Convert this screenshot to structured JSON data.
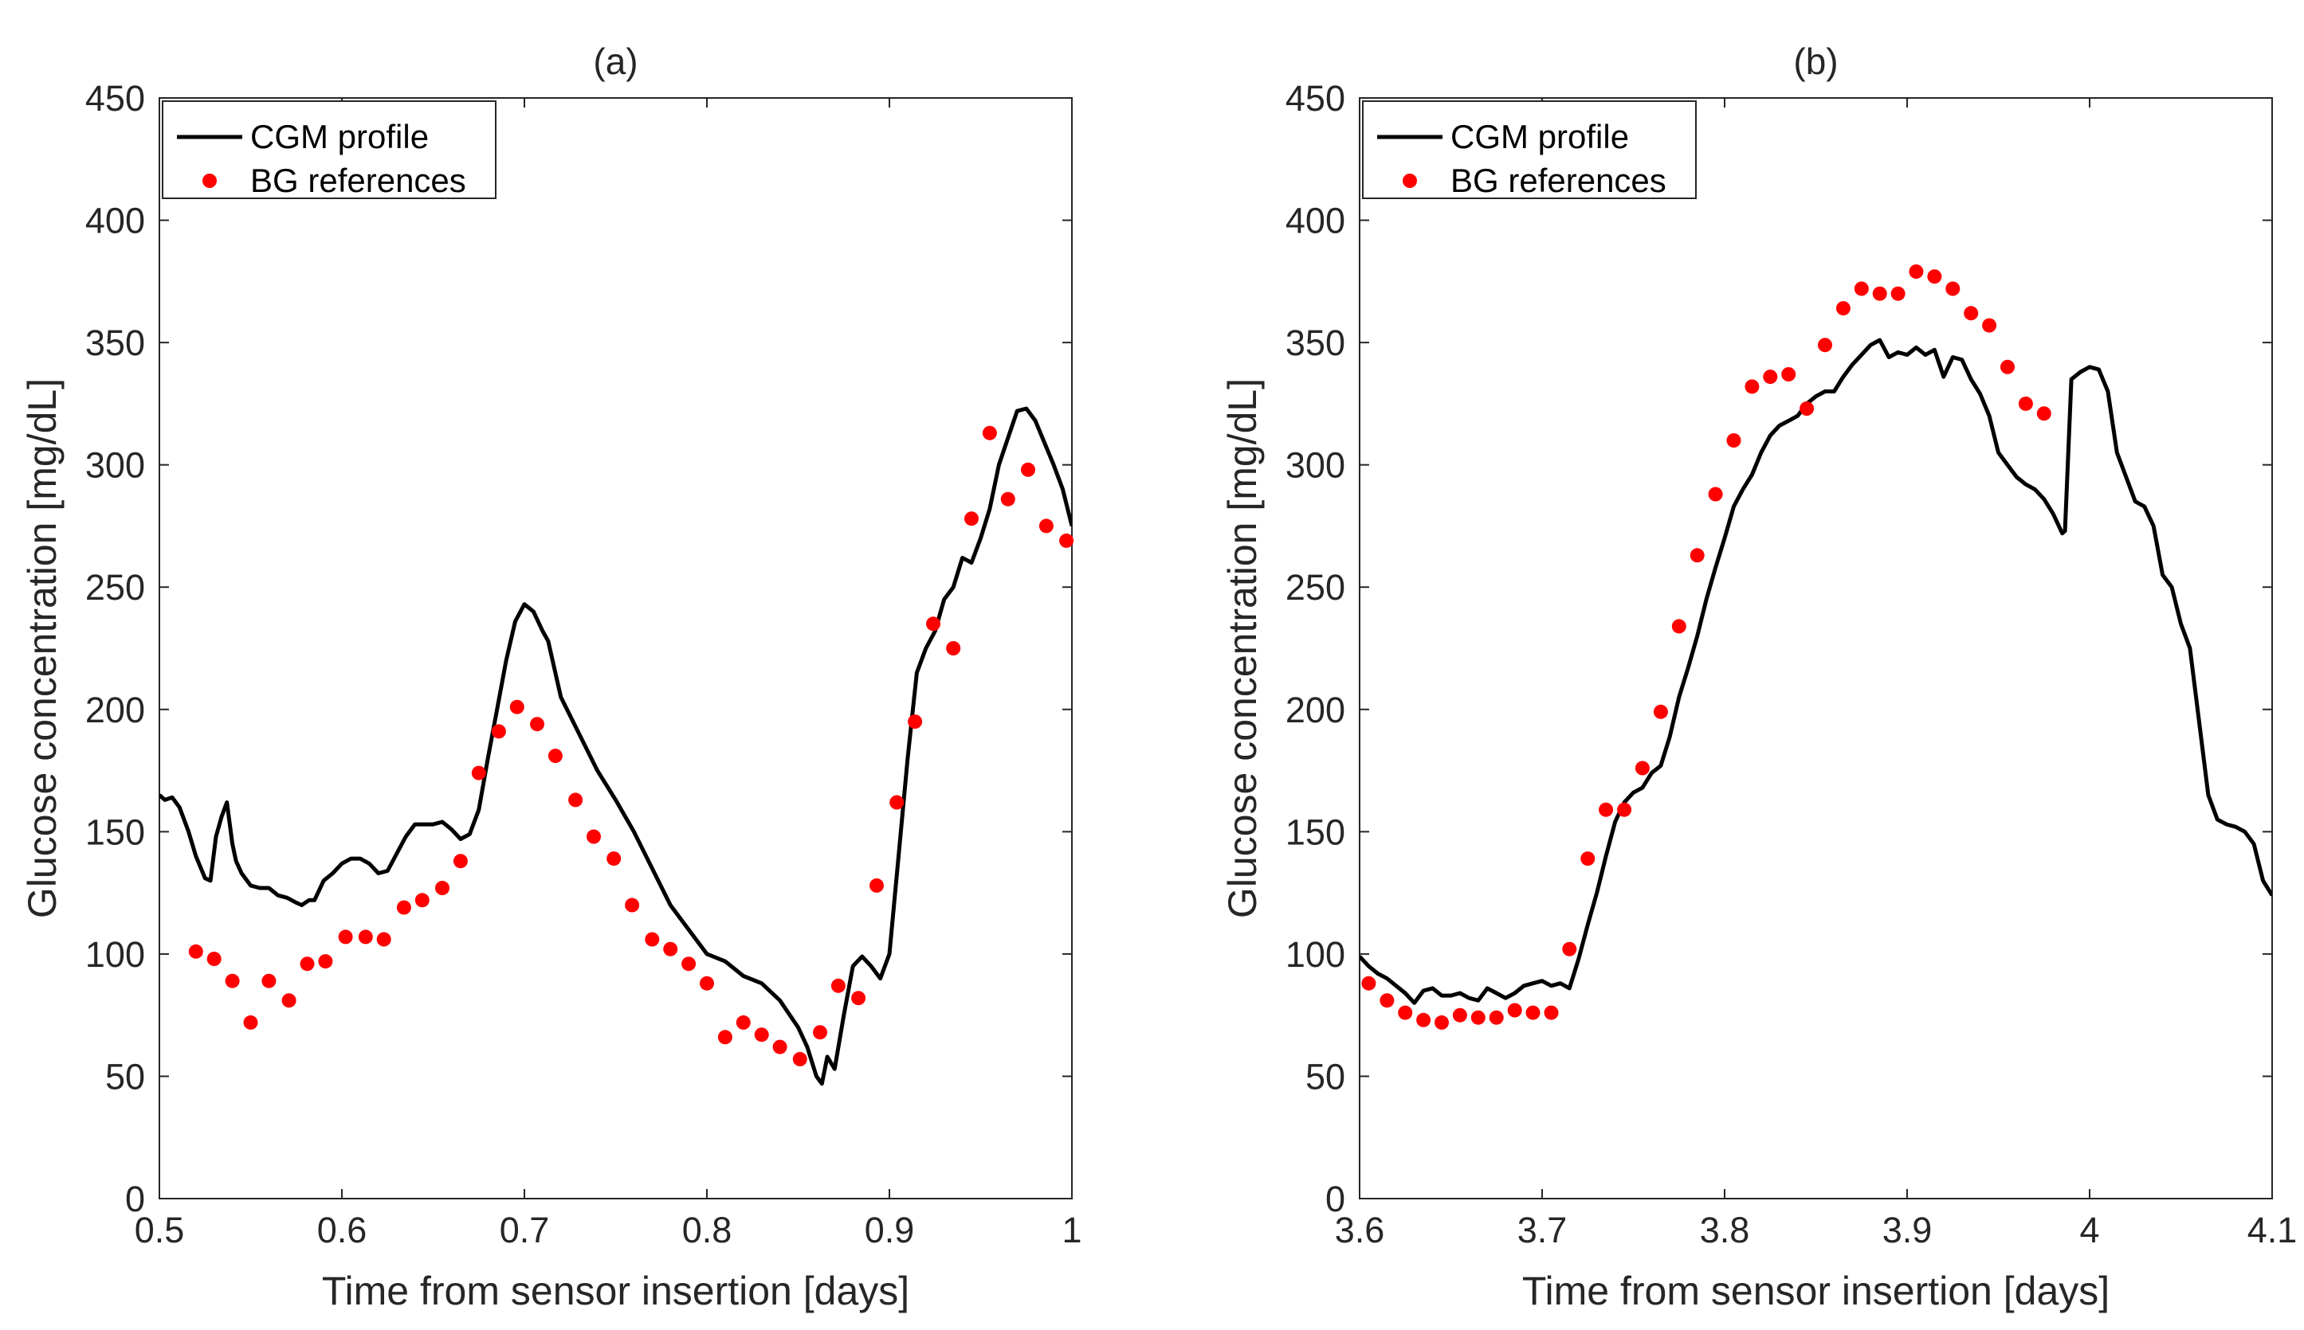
{
  "colors": {
    "line": "#000000",
    "dots": "#ff0000",
    "axis": "#262626",
    "background": "#ffffff"
  },
  "chart_data": [
    {
      "type": "line+scatter",
      "title": "(a)",
      "xlabel": "Time from sensor insertion [days]",
      "ylabel": "Glucose concentration [mg/dL]",
      "xlim": [
        0.5,
        1.0
      ],
      "ylim": [
        0,
        450
      ],
      "xticks": [
        0.5,
        0.6,
        0.7,
        0.8,
        0.9,
        1.0
      ],
      "xtick_labels": [
        "0.5",
        "0.6",
        "0.7",
        "0.8",
        "0.9",
        "1"
      ],
      "yticks": [
        0,
        50,
        100,
        150,
        200,
        250,
        300,
        350,
        400,
        450
      ],
      "ytick_labels": [
        "0",
        "50",
        "100",
        "150",
        "200",
        "250",
        "300",
        "350",
        "400",
        "450"
      ],
      "legend": {
        "position": "top-left",
        "entries": [
          "CGM profile",
          "BG references"
        ]
      },
      "series": [
        {
          "name": "CGM profile",
          "kind": "line",
          "x": [
            0.5,
            0.503,
            0.507,
            0.511,
            0.516,
            0.52,
            0.525,
            0.528,
            0.531,
            0.534,
            0.537,
            0.54,
            0.542,
            0.545,
            0.55,
            0.555,
            0.56,
            0.565,
            0.57,
            0.575,
            0.578,
            0.582,
            0.585,
            0.59,
            0.595,
            0.6,
            0.605,
            0.61,
            0.615,
            0.62,
            0.625,
            0.63,
            0.635,
            0.64,
            0.645,
            0.65,
            0.655,
            0.66,
            0.665,
            0.67,
            0.675,
            0.68,
            0.685,
            0.69,
            0.695,
            0.7,
            0.705,
            0.71,
            0.713,
            0.72,
            0.73,
            0.74,
            0.75,
            0.76,
            0.77,
            0.78,
            0.79,
            0.8,
            0.81,
            0.82,
            0.83,
            0.84,
            0.85,
            0.855,
            0.86,
            0.863,
            0.866,
            0.87,
            0.875,
            0.88,
            0.885,
            0.89,
            0.895,
            0.9,
            0.905,
            0.91,
            0.915,
            0.92,
            0.925,
            0.93,
            0.935,
            0.94,
            0.945,
            0.95,
            0.955,
            0.96,
            0.965,
            0.97,
            0.975,
            0.98,
            0.985,
            0.99,
            0.995,
            1.0
          ],
          "y": [
            165,
            163,
            164,
            160,
            150,
            140,
            131,
            130,
            148,
            156,
            162,
            145,
            138,
            133,
            128,
            127,
            127,
            124,
            123,
            121,
            120,
            122,
            122,
            130,
            133,
            137,
            139,
            139,
            137,
            133,
            134,
            141,
            148,
            153,
            153,
            153,
            154,
            151,
            147,
            149,
            159,
            180,
            200,
            220,
            236,
            243,
            240,
            232,
            228,
            205,
            190,
            175,
            163,
            150,
            135,
            120,
            110,
            100,
            97,
            91,
            88,
            81,
            70,
            62,
            50,
            47,
            58,
            53,
            75,
            95,
            99,
            95,
            90,
            100,
            140,
            180,
            215,
            225,
            232,
            245,
            250,
            262,
            260,
            270,
            282,
            300,
            311,
            322,
            323,
            318,
            309,
            300,
            290,
            275
          ]
        },
        {
          "name": "BG references",
          "kind": "scatter",
          "x": [
            0.52,
            0.53,
            0.54,
            0.55,
            0.56,
            0.571,
            0.581,
            0.591,
            0.602,
            0.613,
            0.623,
            0.634,
            0.644,
            0.655,
            0.665,
            0.675,
            0.686,
            0.696,
            0.707,
            0.717,
            0.728,
            0.738,
            0.749,
            0.759,
            0.77,
            0.78,
            0.79,
            0.8,
            0.81,
            0.82,
            0.83,
            0.84,
            0.851,
            0.862,
            0.872,
            0.883,
            0.893,
            0.904,
            0.914,
            0.924,
            0.935,
            0.945,
            0.955,
            0.965,
            0.976,
            0.986,
            0.997
          ],
          "y": [
            101,
            98,
            89,
            72,
            89,
            81,
            96,
            97,
            107,
            107,
            106,
            119,
            122,
            127,
            138,
            174,
            191,
            201,
            194,
            181,
            163,
            148,
            139,
            120,
            106,
            102,
            96,
            88,
            66,
            72,
            67,
            62,
            57,
            68,
            87,
            82,
            128,
            162,
            195,
            235,
            225,
            278,
            313,
            286,
            298,
            275,
            269
          ]
        }
      ]
    },
    {
      "type": "line+scatter",
      "title": "(b)",
      "xlabel": "Time from sensor insertion [days]",
      "ylabel": "Glucose concentration [mg/dL]",
      "xlim": [
        3.6,
        4.1
      ],
      "ylim": [
        0,
        450
      ],
      "xticks": [
        3.6,
        3.7,
        3.8,
        3.9,
        4.0,
        4.1
      ],
      "xtick_labels": [
        "3.6",
        "3.7",
        "3.8",
        "3.9",
        "4",
        "4.1"
      ],
      "yticks": [
        0,
        50,
        100,
        150,
        200,
        250,
        300,
        350,
        400,
        450
      ],
      "ytick_labels": [
        "0",
        "50",
        "100",
        "150",
        "200",
        "250",
        "300",
        "350",
        "400",
        "450"
      ],
      "legend": {
        "position": "top-left",
        "entries": [
          "CGM profile",
          "BG references"
        ]
      },
      "series": [
        {
          "name": "CGM profile",
          "kind": "line",
          "x": [
            3.6,
            3.605,
            3.61,
            3.615,
            3.62,
            3.625,
            3.63,
            3.635,
            3.64,
            3.645,
            3.65,
            3.655,
            3.66,
            3.665,
            3.67,
            3.675,
            3.68,
            3.685,
            3.69,
            3.695,
            3.7,
            3.705,
            3.71,
            3.715,
            3.72,
            3.725,
            3.73,
            3.735,
            3.74,
            3.745,
            3.75,
            3.755,
            3.76,
            3.765,
            3.77,
            3.775,
            3.78,
            3.785,
            3.79,
            3.795,
            3.8,
            3.805,
            3.81,
            3.815,
            3.82,
            3.825,
            3.83,
            3.835,
            3.84,
            3.845,
            3.85,
            3.855,
            3.86,
            3.865,
            3.87,
            3.875,
            3.88,
            3.885,
            3.89,
            3.895,
            3.9,
            3.905,
            3.91,
            3.915,
            3.92,
            3.925,
            3.93,
            3.935,
            3.94,
            3.945,
            3.95,
            3.955,
            3.96,
            3.965,
            3.97,
            3.975,
            3.98,
            3.985,
            3.9865,
            3.99,
            3.995,
            4.0,
            4.005,
            4.01,
            4.015,
            4.02,
            4.025,
            4.03,
            4.035,
            4.04,
            4.045,
            4.05,
            4.055,
            4.06,
            4.065,
            4.07,
            4.075,
            4.08,
            4.085,
            4.09,
            4.095,
            4.1
          ],
          "y": [
            99,
            95,
            92,
            90,
            87,
            84,
            80,
            85,
            86,
            83,
            83,
            84,
            82,
            81,
            86,
            84,
            82,
            84,
            87,
            88,
            89,
            87,
            88,
            86,
            98,
            112,
            125,
            140,
            154,
            162,
            166,
            168,
            174,
            177,
            189,
            205,
            217,
            230,
            245,
            258,
            270,
            283,
            290,
            296,
            305,
            312,
            316,
            318,
            320,
            325,
            328,
            330,
            330,
            336,
            341,
            345,
            349,
            351,
            344,
            346,
            345,
            348,
            345,
            347,
            336,
            344,
            343,
            335,
            329,
            320,
            305,
            300,
            295,
            292,
            290,
            286,
            280,
            272,
            273,
            335,
            338,
            340,
            339,
            330,
            305,
            295,
            285,
            283,
            275,
            255,
            250,
            235,
            225,
            195,
            165,
            155,
            153,
            152,
            150,
            145,
            130,
            124
          ]
        },
        {
          "name": "BG references",
          "kind": "scatter",
          "x": [
            3.605,
            3.615,
            3.625,
            3.635,
            3.645,
            3.655,
            3.665,
            3.675,
            3.685,
            3.695,
            3.705,
            3.715,
            3.725,
            3.735,
            3.745,
            3.755,
            3.765,
            3.775,
            3.785,
            3.795,
            3.805,
            3.815,
            3.825,
            3.835,
            3.845,
            3.855,
            3.865,
            3.875,
            3.885,
            3.895,
            3.905,
            3.915,
            3.925,
            3.935,
            3.945,
            3.955,
            3.965,
            3.975
          ],
          "y": [
            88,
            81,
            76,
            73,
            72,
            75,
            74,
            74,
            77,
            76,
            76,
            102,
            139,
            159,
            159,
            176,
            199,
            234,
            263,
            288,
            310,
            332,
            336,
            337,
            323,
            349,
            364,
            372,
            370,
            370,
            379,
            377,
            372,
            362,
            357,
            340,
            325,
            321
          ]
        }
      ]
    }
  ]
}
